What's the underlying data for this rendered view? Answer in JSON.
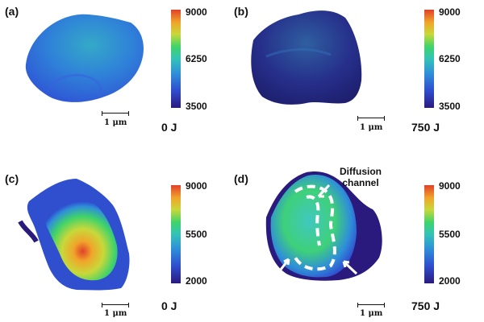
{
  "panels": [
    {
      "label": "(a)",
      "energy": "0 J",
      "scale": "1 μm",
      "cbar": {
        "max": "9000",
        "mid": "6250",
        "min": "3500"
      }
    },
    {
      "label": "(b)",
      "energy": "750 J",
      "scale": "1 μm",
      "cbar": {
        "max": "9000",
        "mid": "6250",
        "min": "3500"
      }
    },
    {
      "label": "(c)",
      "energy": "0 J",
      "scale": "1 μm",
      "cbar": {
        "max": "9000",
        "mid": "5500",
        "min": "2000"
      }
    },
    {
      "label": "(d)",
      "energy": "750 J",
      "scale": "1 μm",
      "cbar": {
        "max": "9000",
        "mid": "5500",
        "min": "2000"
      },
      "annotation": {
        "line1": "Diffusion",
        "line2": "channel"
      }
    }
  ],
  "colors": {
    "colormap": [
      "#2b1a7e",
      "#2f4fcf",
      "#2f8fd8",
      "#33c3b8",
      "#3fd36a",
      "#c8d83a",
      "#f0a52a",
      "#e0402a"
    ]
  }
}
